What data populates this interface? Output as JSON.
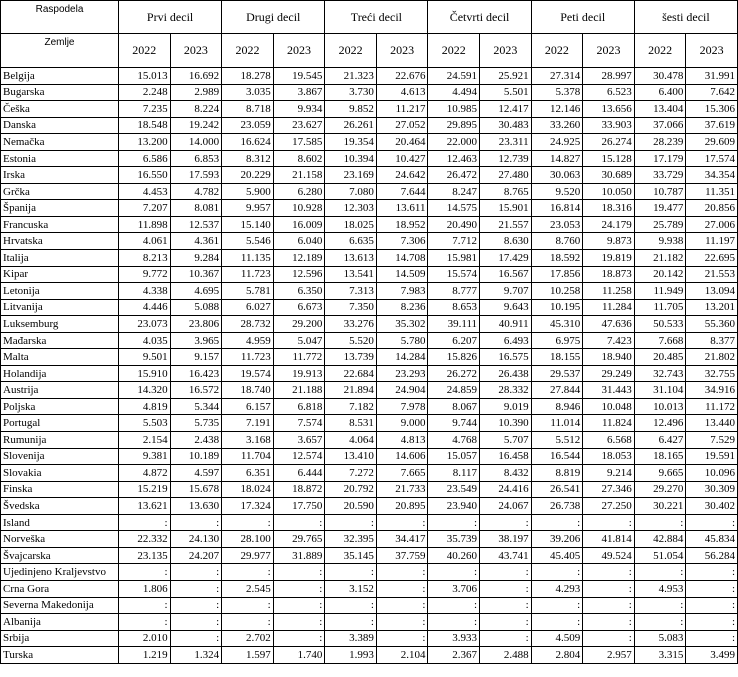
{
  "header": {
    "corner": "Raspodela",
    "subcorner": "Zemlje",
    "groups": [
      {
        "name": "Prvi decil",
        "years": [
          "2022",
          "2023"
        ]
      },
      {
        "name": "Drugi decil",
        "years": [
          "2022",
          "2023"
        ]
      },
      {
        "name": "Treći decil",
        "years": [
          "2022",
          "2023"
        ]
      },
      {
        "name": "Četvrti decil",
        "years": [
          "2022",
          "2023"
        ]
      },
      {
        "name": "Peti decil",
        "years": [
          "2022",
          "2023"
        ]
      },
      {
        "name": "šesti decil",
        "years": [
          "2022",
          "2023"
        ]
      }
    ]
  },
  "table": {
    "rows": [
      {
        "country": "Belgija",
        "values": [
          "15.013",
          "16.692",
          "18.278",
          "19.545",
          "21.323",
          "22.676",
          "24.591",
          "25.921",
          "27.314",
          "28.997",
          "30.478",
          "31.991"
        ]
      },
      {
        "country": "Bugarska",
        "values": [
          "2.248",
          "2.989",
          "3.035",
          "3.867",
          "3.730",
          "4.613",
          "4.494",
          "5.501",
          "5.378",
          "6.523",
          "6.400",
          "7.642"
        ]
      },
      {
        "country": "Češka",
        "values": [
          "7.235",
          "8.224",
          "8.718",
          "9.934",
          "9.852",
          "11.217",
          "10.985",
          "12.417",
          "12.146",
          "13.656",
          "13.404",
          "15.306"
        ]
      },
      {
        "country": "Danska",
        "values": [
          "18.548",
          "19.242",
          "23.059",
          "23.627",
          "26.261",
          "27.052",
          "29.895",
          "30.483",
          "33.260",
          "33.903",
          "37.066",
          "37.619"
        ]
      },
      {
        "country": "Nemačka",
        "values": [
          "13.200",
          "14.000",
          "16.624",
          "17.585",
          "19.354",
          "20.464",
          "22.000",
          "23.311",
          "24.925",
          "26.274",
          "28.239",
          "29.609"
        ]
      },
      {
        "country": "Estonia",
        "values": [
          "6.586",
          "6.853",
          "8.312",
          "8.602",
          "10.394",
          "10.427",
          "12.463",
          "12.739",
          "14.827",
          "15.128",
          "17.179",
          "17.574"
        ]
      },
      {
        "country": "Irska",
        "values": [
          "16.550",
          "17.593",
          "20.229",
          "21.158",
          "23.169",
          "24.642",
          "26.472",
          "27.480",
          "30.063",
          "30.689",
          "33.729",
          "34.354"
        ]
      },
      {
        "country": "Grčka",
        "values": [
          "4.453",
          "4.782",
          "5.900",
          "6.280",
          "7.080",
          "7.644",
          "8.247",
          "8.765",
          "9.520",
          "10.050",
          "10.787",
          "11.351"
        ]
      },
      {
        "country": "Španija",
        "values": [
          "7.207",
          "8.081",
          "9.957",
          "10.928",
          "12.303",
          "13.611",
          "14.575",
          "15.901",
          "16.814",
          "18.316",
          "19.477",
          "20.856"
        ]
      },
      {
        "country": "Francuska",
        "values": [
          "11.898",
          "12.537",
          "15.140",
          "16.009",
          "18.025",
          "18.952",
          "20.490",
          "21.557",
          "23.053",
          "24.179",
          "25.789",
          "27.006"
        ]
      },
      {
        "country": "Hrvatska",
        "values": [
          "4.061",
          "4.361",
          "5.546",
          "6.040",
          "6.635",
          "7.306",
          "7.712",
          "8.630",
          "8.760",
          "9.873",
          "9.938",
          "11.197"
        ]
      },
      {
        "country": "Italija",
        "values": [
          "8.213",
          "9.284",
          "11.135",
          "12.189",
          "13.613",
          "14.708",
          "15.981",
          "17.429",
          "18.592",
          "19.819",
          "21.182",
          "22.695"
        ]
      },
      {
        "country": "Kipar",
        "values": [
          "9.772",
          "10.367",
          "11.723",
          "12.596",
          "13.541",
          "14.509",
          "15.574",
          "16.567",
          "17.856",
          "18.873",
          "20.142",
          "21.553"
        ]
      },
      {
        "country": "Letonija",
        "values": [
          "4.338",
          "4.695",
          "5.781",
          "6.350",
          "7.313",
          "7.983",
          "8.777",
          "9.707",
          "10.258",
          "11.258",
          "11.949",
          "13.094"
        ]
      },
      {
        "country": "Litvanija",
        "values": [
          "4.446",
          "5.088",
          "6.027",
          "6.673",
          "7.350",
          "8.236",
          "8.653",
          "9.643",
          "10.195",
          "11.284",
          "11.705",
          "13.201"
        ]
      },
      {
        "country": "Luksemburg",
        "values": [
          "23.073",
          "23.806",
          "28.732",
          "29.200",
          "33.276",
          "35.302",
          "39.111",
          "40.911",
          "45.310",
          "47.636",
          "50.533",
          "55.360"
        ]
      },
      {
        "country": "Mađarska",
        "values": [
          "4.035",
          "3.965",
          "4.959",
          "5.047",
          "5.520",
          "5.780",
          "6.207",
          "6.493",
          "6.975",
          "7.423",
          "7.668",
          "8.377"
        ]
      },
      {
        "country": "Malta",
        "values": [
          "9.501",
          "9.157",
          "11.723",
          "11.772",
          "13.739",
          "14.284",
          "15.826",
          "16.575",
          "18.155",
          "18.940",
          "20.485",
          "21.802"
        ]
      },
      {
        "country": "Holandija",
        "values": [
          "15.910",
          "16.423",
          "19.574",
          "19.913",
          "22.684",
          "23.293",
          "26.272",
          "26.438",
          "29.537",
          "29.249",
          "32.743",
          "32.755"
        ]
      },
      {
        "country": "Austrija",
        "values": [
          "14.320",
          "16.572",
          "18.740",
          "21.188",
          "21.894",
          "24.904",
          "24.859",
          "28.332",
          "27.844",
          "31.443",
          "31.104",
          "34.916"
        ]
      },
      {
        "country": "Poljska",
        "values": [
          "4.819",
          "5.344",
          "6.157",
          "6.818",
          "7.182",
          "7.978",
          "8.067",
          "9.019",
          "8.946",
          "10.048",
          "10.013",
          "11.172"
        ]
      },
      {
        "country": "Portugal",
        "values": [
          "5.503",
          "5.735",
          "7.191",
          "7.574",
          "8.531",
          "9.000",
          "9.744",
          "10.390",
          "11.014",
          "11.824",
          "12.496",
          "13.440"
        ]
      },
      {
        "country": "Rumunija",
        "values": [
          "2.154",
          "2.438",
          "3.168",
          "3.657",
          "4.064",
          "4.813",
          "4.768",
          "5.707",
          "5.512",
          "6.568",
          "6.427",
          "7.529"
        ]
      },
      {
        "country": "Slovenija",
        "values": [
          "9.381",
          "10.189",
          "11.704",
          "12.574",
          "13.410",
          "14.606",
          "15.057",
          "16.458",
          "16.544",
          "18.053",
          "18.165",
          "19.591"
        ]
      },
      {
        "country": "Slovakia",
        "values": [
          "4.872",
          "4.597",
          "6.351",
          "6.444",
          "7.272",
          "7.665",
          "8.117",
          "8.432",
          "8.819",
          "9.214",
          "9.665",
          "10.096"
        ]
      },
      {
        "country": "Finska",
        "values": [
          "15.219",
          "15.678",
          "18.024",
          "18.872",
          "20.792",
          "21.733",
          "23.549",
          "24.416",
          "26.541",
          "27.346",
          "29.270",
          "30.309"
        ]
      },
      {
        "country": "Švedska",
        "values": [
          "13.621",
          "13.630",
          "17.324",
          "17.750",
          "20.590",
          "20.895",
          "23.940",
          "24.067",
          "26.738",
          "27.250",
          "30.221",
          "30.402"
        ]
      },
      {
        "country": "Island",
        "values": [
          ":",
          ":",
          ":",
          ":",
          ":",
          ":",
          ":",
          ":",
          ":",
          ":",
          ":",
          ":"
        ]
      },
      {
        "country": "Norveška",
        "values": [
          "22.332",
          "24.130",
          "28.100",
          "29.765",
          "32.395",
          "34.417",
          "35.739",
          "38.197",
          "39.206",
          "41.814",
          "42.884",
          "45.834"
        ]
      },
      {
        "country": "Švajcarska",
        "values": [
          "23.135",
          "24.207",
          "29.977",
          "31.889",
          "35.145",
          "37.759",
          "40.260",
          "43.741",
          "45.405",
          "49.524",
          "51.054",
          "56.284"
        ]
      },
      {
        "country": "Ujedinjeno Kraljevstvo",
        "values": [
          ":",
          ":",
          ":",
          ":",
          ":",
          ":",
          ":",
          ":",
          ":",
          ":",
          ":",
          ":"
        ]
      },
      {
        "country": "Crna Gora",
        "values": [
          "1.806",
          ":",
          "2.545",
          ":",
          "3.152",
          ":",
          "3.706",
          ":",
          "4.293",
          ":",
          "4.953",
          ":"
        ]
      },
      {
        "country": "Severna Makedonija",
        "values": [
          ":",
          ":",
          ":",
          ":",
          ":",
          ":",
          ":",
          ":",
          ":",
          ":",
          ":",
          ":"
        ]
      },
      {
        "country": "Albanija",
        "values": [
          ":",
          ":",
          ":",
          ":",
          ":",
          ":",
          ":",
          ":",
          ":",
          ":",
          ":",
          ":"
        ]
      },
      {
        "country": "Srbija",
        "values": [
          "2.010",
          ":",
          "2.702",
          ":",
          "3.389",
          ":",
          "3.933",
          ":",
          "4.509",
          ":",
          "5.083",
          ":"
        ]
      },
      {
        "country": "Turska",
        "values": [
          "1.219",
          "1.324",
          "1.597",
          "1.740",
          "1.993",
          "2.104",
          "2.367",
          "2.488",
          "2.804",
          "2.957",
          "3.315",
          "3.499"
        ]
      }
    ]
  }
}
